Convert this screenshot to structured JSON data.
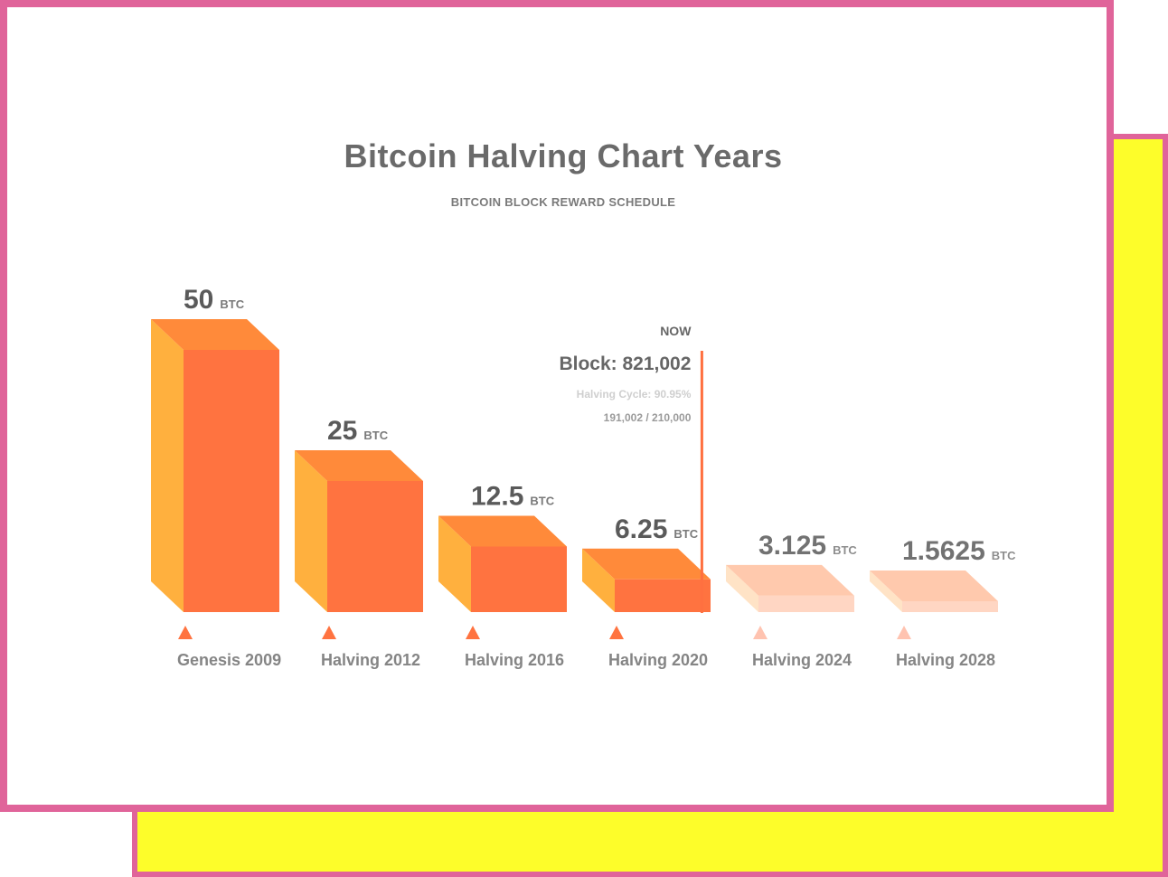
{
  "chart_data": {
    "type": "bar",
    "title": "Bitcoin Halving Chart Years",
    "subtitle": "BITCOIN BLOCK REWARD SCHEDULE",
    "unit": "BTC",
    "categories": [
      "Genesis 2009",
      "Halving 2012",
      "Halving 2016",
      "Halving 2020",
      "Halving 2024",
      "Halving 2028"
    ],
    "values": [
      50,
      25,
      12.5,
      6.25,
      3.125,
      1.5625
    ],
    "value_labels": [
      "50",
      "25",
      "12.5",
      "6.25",
      "3.125",
      "1.5625"
    ],
    "future_from_index": 4,
    "now_marker": {
      "label": "NOW",
      "block": "Block: 821,002",
      "cycle": "Halving Cycle: 90.95%",
      "progress": "191,002 / 210,000",
      "cycle_fraction": 0.9095
    },
    "colors": {
      "front": "#ff7340",
      "side": "#ffb03e",
      "top": "#ff8a3a",
      "future_front": "#ffd6c3",
      "future_side": "#ffe3c6",
      "future_top": "#ffc9ad",
      "now_line": "#ff7040",
      "frame_border": "#e0649a",
      "frame_back": "#fdfd2a"
    }
  }
}
